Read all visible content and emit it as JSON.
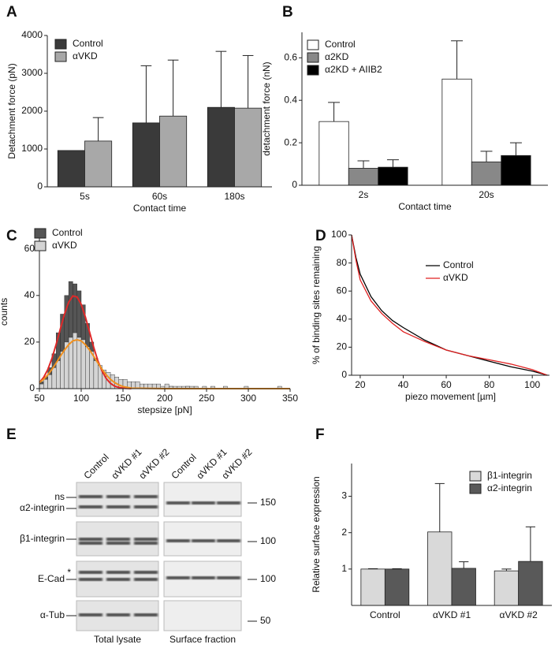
{
  "chart_data": [
    {
      "type": "bar",
      "panel": "A",
      "categories": [
        "5s",
        "60s",
        "180s"
      ],
      "xlabel": "Contact time",
      "ylabel": "Detachment force (pN)",
      "series": [
        {
          "name": "Control",
          "color": "#3a3a3a",
          "values": [
            960,
            1690,
            2100
          ],
          "errors": [
            null,
            1510,
            1480
          ]
        },
        {
          "name": "αVKD",
          "color": "#a8a8a8",
          "values": [
            1210,
            1870,
            2080
          ],
          "errors": [
            620,
            1480,
            1390
          ]
        }
      ],
      "ylim": [
        0,
        4000
      ],
      "yticks": [
        0,
        1000,
        2000,
        3000,
        4000
      ]
    },
    {
      "type": "bar",
      "panel": "B",
      "categories": [
        "2s",
        "20s"
      ],
      "xlabel": "Contact time",
      "ylabel": "detachment force (nN)",
      "series": [
        {
          "name": "Control",
          "color": "#ffffff",
          "values": [
            0.3,
            0.5
          ],
          "errors": [
            0.09,
            0.18
          ]
        },
        {
          "name": "α2KD",
          "color": "#888888",
          "values": [
            0.08,
            0.11
          ],
          "errors": [
            0.035,
            0.05
          ]
        },
        {
          "name": "α2KD + AIIB2",
          "color": "#000000",
          "values": [
            0.085,
            0.14
          ],
          "errors": [
            0.035,
            0.06
          ]
        }
      ],
      "ylim": [
        0,
        0.72
      ],
      "yticks": [
        0,
        0.2,
        0.4,
        0.6
      ]
    },
    {
      "type": "histogram",
      "panel": "C",
      "xlabel": "stepsize [pN]",
      "ylabel": "counts",
      "bins": [
        50,
        55,
        60,
        65,
        70,
        75,
        80,
        85,
        90,
        95,
        100,
        105,
        110,
        115,
        120,
        125,
        130,
        135,
        140,
        145,
        150,
        155,
        160,
        165,
        170,
        175,
        180,
        185,
        190,
        195,
        200,
        205,
        210,
        215,
        220,
        225,
        230,
        235,
        240,
        245,
        250,
        255,
        260,
        265,
        270,
        275,
        280,
        285,
        290,
        295,
        300,
        305,
        310,
        315,
        320,
        325,
        330,
        335,
        340,
        345,
        350
      ],
      "series": [
        {
          "name": "Control",
          "color": "#555555",
          "values": [
            3,
            5,
            9,
            15,
            24,
            32,
            40,
            46,
            45,
            42,
            36,
            28,
            20,
            13,
            9,
            6,
            5,
            3,
            3,
            2,
            2,
            2,
            1,
            2,
            1,
            1,
            1,
            0,
            1,
            0,
            0,
            1,
            0,
            0,
            0,
            1,
            0,
            0,
            0,
            0,
            0,
            0,
            0,
            0,
            0,
            0,
            0,
            0,
            0,
            0,
            0,
            0,
            0,
            0,
            0,
            0,
            0,
            0,
            0,
            0
          ]
        },
        {
          "name": "αVKD",
          "color": "#d4d4d4",
          "values": [
            2,
            4,
            6,
            9,
            12,
            16,
            20,
            22,
            24,
            22,
            21,
            18,
            16,
            12,
            10,
            8,
            7,
            6,
            5,
            4,
            4,
            3,
            3,
            3,
            2,
            2,
            2,
            2,
            2,
            1,
            2,
            1,
            1,
            1,
            1,
            1,
            1,
            1,
            0,
            1,
            0,
            1,
            0,
            0,
            1,
            0,
            0,
            0,
            0,
            1,
            0,
            0,
            0,
            0,
            0,
            0,
            0,
            1,
            0,
            0
          ]
        }
      ],
      "fits": [
        {
          "color": "#e02828",
          "x": [
            50,
            55,
            60,
            65,
            70,
            75,
            80,
            85,
            90,
            95,
            100,
            105,
            110,
            115,
            120,
            125,
            130,
            135,
            140,
            145,
            150,
            160
          ],
          "values": [
            2.6,
            4.8,
            8.2,
            13,
            19,
            25.6,
            32,
            37.1,
            39.8,
            39.4,
            36.2,
            30.8,
            24.3,
            17.7,
            11.9,
            7.5,
            4.3,
            2.3,
            1.1,
            0.5,
            0.2,
            0
          ]
        },
        {
          "color": "#f0901e",
          "x": [
            50,
            55,
            60,
            65,
            70,
            75,
            80,
            85,
            90,
            95,
            100,
            105,
            110,
            115,
            120,
            125,
            130,
            135,
            140,
            145,
            150,
            160,
            200,
            350
          ],
          "values": [
            2.6,
            4.0,
            5.9,
            8.3,
            11,
            13.9,
            16.6,
            18.9,
            20.5,
            21,
            20.5,
            18.9,
            16.6,
            13.9,
            11,
            8.3,
            5.9,
            4.0,
            2.6,
            1.6,
            0.9,
            0.2,
            0,
            0
          ]
        }
      ],
      "xlim": [
        50,
        350
      ],
      "xticks": [
        50,
        100,
        150,
        200,
        250,
        300,
        350
      ],
      "ylim": [
        0,
        66
      ],
      "yticks": [
        0,
        20,
        40,
        60
      ]
    },
    {
      "type": "line",
      "panel": "D",
      "xlabel": "piezo movement [µm]",
      "ylabel": "% of binding sites remaining",
      "x": [
        16,
        18,
        20,
        25,
        30,
        35,
        40,
        50,
        60,
        70,
        80,
        90,
        100,
        107
      ],
      "series": [
        {
          "name": "Control",
          "color": "#000000",
          "values": [
            100,
            84,
            72,
            56,
            46,
            39,
            34,
            25,
            18,
            14,
            10,
            6,
            3,
            0
          ]
        },
        {
          "name": "αVKD",
          "color": "#e02020",
          "values": [
            100,
            82,
            68,
            53,
            44,
            37,
            31,
            24,
            18,
            14,
            11,
            8,
            4,
            0
          ]
        }
      ],
      "xlim": [
        16,
        108
      ],
      "xticks": [
        20,
        40,
        60,
        80,
        100
      ],
      "ylim": [
        0,
        100
      ],
      "yticks": [
        0,
        20,
        40,
        60,
        80,
        100
      ]
    },
    {
      "type": "bar",
      "panel": "F",
      "categories": [
        "Control",
        "αVKD #1",
        "αVKD #2"
      ],
      "ylabel": "Relative surface expression",
      "series": [
        {
          "name": "β1-integrin",
          "color": "#d9d9d9",
          "values": [
            1.0,
            2.02,
            0.95
          ],
          "errors": [
            0.01,
            1.33,
            0.05
          ]
        },
        {
          "name": "α2-integrin",
          "color": "#595959",
          "values": [
            1.0,
            1.02,
            1.21
          ],
          "errors": [
            0.01,
            0.18,
            0.95
          ]
        }
      ],
      "ylim": [
        0,
        3.9
      ],
      "yticks": [
        1,
        2,
        3
      ]
    }
  ],
  "blot": {
    "panel": "E",
    "column_labels": [
      "Control",
      "αVKD #1",
      "αVKD #2",
      "Control",
      "αVKD #1",
      "αVKD #2"
    ],
    "row_labels": [
      "ns",
      "α2-integrin",
      "β1-integrin",
      "E-Cad",
      "α-Tub"
    ],
    "star": "*",
    "markers": [
      "150",
      "100",
      "100",
      "50"
    ],
    "section_labels": [
      "Total lysate",
      "Surface fraction"
    ]
  }
}
